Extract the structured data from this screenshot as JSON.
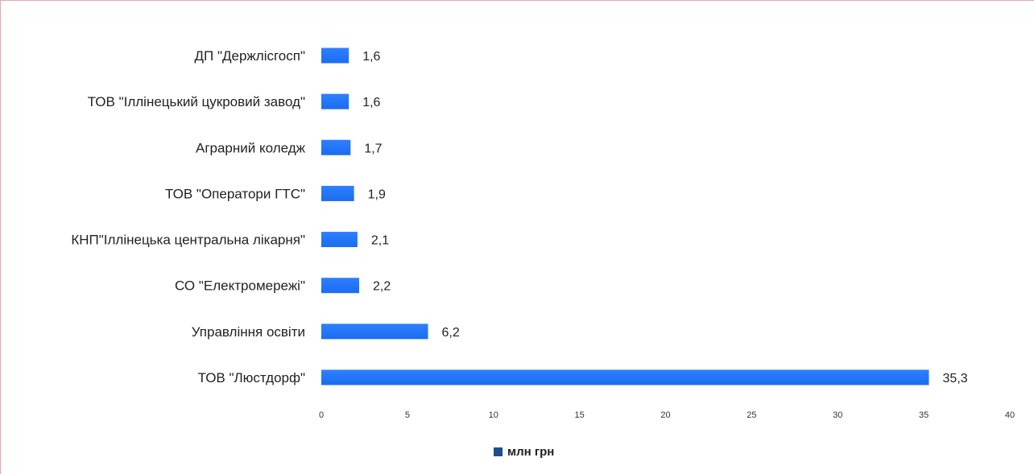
{
  "chart_data": {
    "type": "bar",
    "orientation": "horizontal",
    "categories": [
      "ДП \"Держлісгосп\"",
      "ТОВ \"Іллінецький цукровий завод\"",
      "Аграрний коледж",
      "ТОВ \"Оператори ГТС\"",
      "КНП\"Іллінецька центральна лікарня\"",
      "СО \"Електромережі\"",
      "Управління освіти",
      "ТОВ \"Люстдорф\""
    ],
    "values": [
      1.6,
      1.6,
      1.7,
      1.9,
      2.1,
      2.2,
      6.2,
      35.3
    ],
    "value_labels": [
      "1,6",
      "1,6",
      "1,7",
      "1,9",
      "2,1",
      "2,2",
      "6,2",
      "35,3"
    ],
    "series": [
      {
        "name": "млн грн",
        "values": [
          1.6,
          1.6,
          1.7,
          1.9,
          2.1,
          2.2,
          6.2,
          35.3
        ]
      }
    ],
    "xlim": [
      0,
      40
    ],
    "x_ticks": [
      "0",
      "5",
      "10",
      "15",
      "20",
      "25",
      "30",
      "35",
      "40"
    ],
    "grid": false,
    "legend_position": "bottom",
    "bar_color": "#1a6cf0",
    "legend_color": "#1f4e8c"
  }
}
